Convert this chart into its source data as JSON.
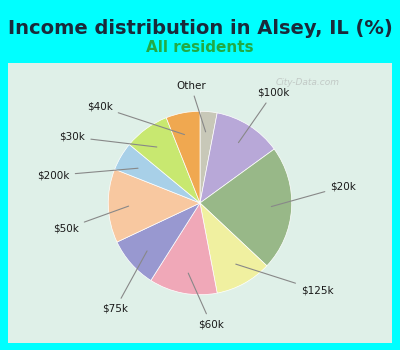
{
  "title": "Income distribution in Alsey, IL (%)",
  "subtitle": "All residents",
  "background_outer": "#00FFFF",
  "background_inner": "#dff0e8",
  "labels": [
    "Other",
    "$100k",
    "$20k",
    "$125k",
    "$60k",
    "$75k",
    "$50k",
    "$200k",
    "$30k",
    "$40k"
  ],
  "sizes": [
    3,
    12,
    22,
    10,
    12,
    9,
    13,
    5,
    8,
    6
  ],
  "colors": [
    "#c8c8b8",
    "#b8a8d8",
    "#98b888",
    "#f0f0a0",
    "#f0a8b8",
    "#9898d0",
    "#f8c8a0",
    "#a8d0e8",
    "#c8e870",
    "#f0a850"
  ],
  "startangle": 90,
  "watermark": "City-Data.com",
  "title_fontsize": 14,
  "subtitle_fontsize": 11,
  "subtitle_color": "#22aa44",
  "title_color": "#1a2a3a"
}
